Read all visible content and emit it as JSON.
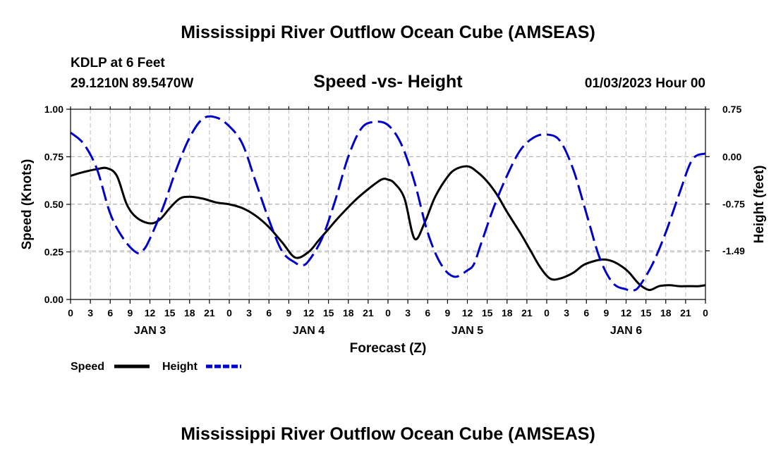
{
  "page_title": "Mississippi River Outflow Ocean Cube (AMSEAS)",
  "page_title_repeat": "Mississippi River Outflow Ocean Cube (AMSEAS)",
  "station": {
    "name": "KDLP at 6 Feet",
    "coords": "29.1210N  89.5470W",
    "datetime": "01/03/2023 Hour 00"
  },
  "chart_data": {
    "type": "line",
    "title": "Speed -vs- Height",
    "xlabel": "Forecast (Z)",
    "ylabel_left": "Speed (Knots)",
    "ylabel_right": "Height (feet)",
    "x_unit": "hours since 01/03/2023 00Z",
    "xlim": [
      0,
      96
    ],
    "ylim_left": [
      0,
      1.0
    ],
    "ylim_right": [
      -2.26,
      0.75
    ],
    "grid": true,
    "legend_position": "bottom-left",
    "x_ticks": [
      0,
      3,
      6,
      9,
      12,
      15,
      18,
      21,
      24,
      27,
      30,
      33,
      36,
      39,
      42,
      45,
      48,
      51,
      54,
      57,
      60,
      63,
      66,
      69,
      72,
      75,
      78,
      81,
      84,
      87,
      90,
      93,
      96
    ],
    "x_tick_labels": [
      "0",
      "3",
      "6",
      "9",
      "12",
      "15",
      "18",
      "21",
      "0",
      "3",
      "6",
      "9",
      "12",
      "15",
      "18",
      "21",
      "0",
      "3",
      "6",
      "9",
      "12",
      "15",
      "18",
      "21",
      "0",
      "3",
      "6",
      "9",
      "12",
      "15",
      "18",
      "21",
      "0"
    ],
    "day_labels": [
      {
        "label": "JAN 3",
        "at": 12
      },
      {
        "label": "JAN 4",
        "at": 36
      },
      {
        "label": "JAN 5",
        "at": 60
      },
      {
        "label": "JAN 6",
        "at": 84
      }
    ],
    "y_ticks_left": [
      0.0,
      0.25,
      0.5,
      0.75,
      1.0
    ],
    "y_tick_labels_left": [
      "0.00",
      "0.25",
      "0.50",
      "0.75",
      "1.00"
    ],
    "y_ticks_right": [
      0.75,
      0.0,
      -0.75,
      -1.49
    ],
    "y_tick_labels_right": [
      "0.75",
      "0.00",
      "-0.75",
      "-1.49"
    ],
    "series": [
      {
        "name": "Speed",
        "axis": "left",
        "color": "#000000",
        "dash": "solid",
        "x": [
          0,
          2,
          4,
          5.5,
          7,
          8.5,
          10,
          12,
          13.5,
          15,
          16.5,
          18,
          20,
          22,
          24,
          26,
          28,
          30,
          32,
          34,
          36,
          37.5,
          39,
          40.5,
          43,
          45,
          47,
          48,
          49,
          50.5,
          52,
          53.5,
          55,
          56.5,
          58,
          60,
          61.5,
          63,
          64.5,
          66,
          68,
          69.5,
          71,
          72.5,
          74,
          76,
          77.5,
          79,
          80.5,
          82,
          83.5,
          84.5,
          86,
          87.5,
          89,
          90.5,
          92,
          93.5,
          95,
          96
        ],
        "y": [
          0.65,
          0.67,
          0.685,
          0.69,
          0.65,
          0.5,
          0.43,
          0.4,
          0.42,
          0.48,
          0.53,
          0.54,
          0.53,
          0.51,
          0.5,
          0.48,
          0.44,
          0.38,
          0.3,
          0.22,
          0.25,
          0.31,
          0.37,
          0.43,
          0.52,
          0.58,
          0.63,
          0.63,
          0.61,
          0.53,
          0.32,
          0.4,
          0.53,
          0.62,
          0.68,
          0.7,
          0.67,
          0.62,
          0.55,
          0.46,
          0.35,
          0.26,
          0.17,
          0.11,
          0.11,
          0.14,
          0.18,
          0.2,
          0.21,
          0.2,
          0.17,
          0.14,
          0.08,
          0.05,
          0.07,
          0.075,
          0.07,
          0.07,
          0.07,
          0.075
        ]
      },
      {
        "name": "Height",
        "axis": "right",
        "color": "#0000cc",
        "dash": "dashed",
        "x": [
          0,
          2,
          4,
          6,
          8,
          10,
          11,
          12,
          14,
          16,
          18,
          20,
          22,
          24,
          26,
          28,
          30,
          32,
          34,
          35,
          36,
          38,
          40,
          42,
          44,
          46,
          48,
          50,
          52,
          54,
          56,
          58,
          60,
          61,
          62,
          64,
          66,
          68,
          70,
          72,
          74,
          76,
          78,
          80,
          82,
          84,
          85,
          86,
          88,
          90,
          92,
          94,
          96
        ],
        "y": [
          0.38,
          0.2,
          -0.2,
          -0.9,
          -1.3,
          -1.52,
          -1.48,
          -1.3,
          -0.8,
          -0.2,
          0.3,
          0.6,
          0.62,
          0.48,
          0.2,
          -0.4,
          -1.0,
          -1.5,
          -1.68,
          -1.72,
          -1.65,
          -1.3,
          -0.7,
          0.0,
          0.45,
          0.55,
          0.5,
          0.2,
          -0.4,
          -1.2,
          -1.7,
          -1.9,
          -1.8,
          -1.7,
          -1.4,
          -0.8,
          -0.3,
          0.1,
          0.3,
          0.35,
          0.25,
          -0.2,
          -0.9,
          -1.6,
          -2.0,
          -2.1,
          -2.12,
          -2.05,
          -1.7,
          -1.2,
          -0.6,
          -0.05,
          0.05
        ]
      }
    ],
    "legend": [
      {
        "label": "Speed",
        "color": "#000000",
        "dash": "solid"
      },
      {
        "label": "Height",
        "color": "#0000cc",
        "dash": "dashed"
      }
    ]
  }
}
